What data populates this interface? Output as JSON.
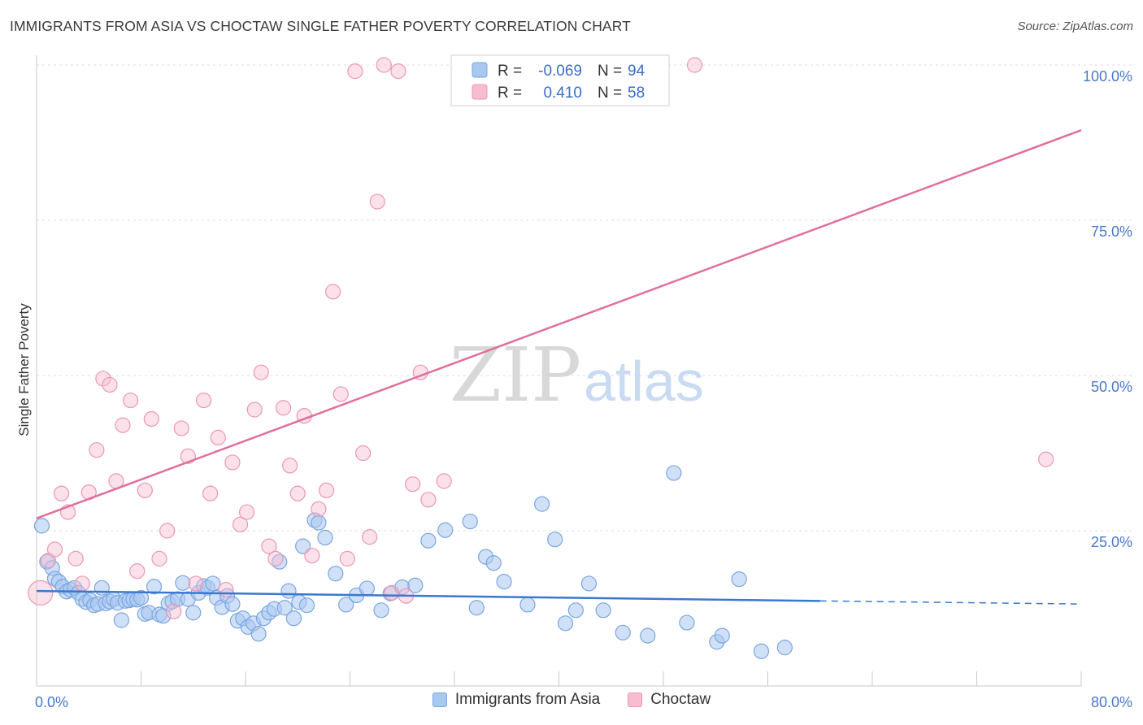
{
  "header": {
    "title": "IMMIGRANTS FROM ASIA VS CHOCTAW SINGLE FATHER POVERTY CORRELATION CHART",
    "source": "Source: ZipAtlas.com"
  },
  "watermark": {
    "zip": "ZIP",
    "atlas": "atlas"
  },
  "colors": {
    "blue_fill": "#a9c8f0",
    "blue_stroke": "#7aa6e0",
    "blue_line": "#3a78d0",
    "pink_fill": "#f6bcd0",
    "pink_stroke": "#eb97b5",
    "pink_line": "#e0709a",
    "value_text": "#3a6fc8"
  },
  "legend_top": {
    "rows": [
      {
        "r_label": "R =",
        "r_value": "-0.069",
        "n_label": "N =",
        "n_value": "94"
      },
      {
        "r_label": "R =",
        "r_value": "0.410",
        "n_label": "N =",
        "n_value": "58"
      }
    ]
  },
  "legend_bottom": [
    {
      "label": "Immigrants from Asia"
    },
    {
      "label": "Choctaw"
    }
  ],
  "chart_data": {
    "type": "scatter",
    "xlabel": "",
    "ylabel": "Single Father Poverty",
    "xlim": [
      0,
      80
    ],
    "ylim": [
      0,
      100
    ],
    "x_tick_labels": [
      "0.0%",
      "80.0%"
    ],
    "y_tick_labels": [
      "25.0%",
      "50.0%",
      "75.0%",
      "100.0%"
    ],
    "y_ticks": [
      25,
      50,
      75,
      100
    ],
    "grid": true,
    "legend": "top-center",
    "series": [
      {
        "name": "Immigrants from Asia",
        "color": "#a9c8f0",
        "trend": {
          "x": [
            0,
            60
          ],
          "y": [
            15.3,
            13.7
          ],
          "dashed_to_x": 80,
          "dashed_to_y": 13.2
        },
        "points": [
          [
            0.4,
            25.8
          ],
          [
            0.8,
            20.0
          ],
          [
            1.2,
            19.0
          ],
          [
            1.4,
            17.3
          ],
          [
            1.7,
            16.8
          ],
          [
            2.0,
            16.0
          ],
          [
            2.3,
            15.2
          ],
          [
            2.6,
            15.5
          ],
          [
            2.9,
            15.8
          ],
          [
            3.2,
            15.0
          ],
          [
            3.5,
            14.0
          ],
          [
            3.8,
            13.5
          ],
          [
            4.1,
            13.8
          ],
          [
            4.4,
            13.0
          ],
          [
            4.7,
            13.2
          ],
          [
            5.0,
            15.8
          ],
          [
            5.3,
            13.3
          ],
          [
            5.6,
            13.6
          ],
          [
            5.9,
            14.0
          ],
          [
            6.2,
            13.4
          ],
          [
            6.5,
            10.6
          ],
          [
            6.8,
            13.7
          ],
          [
            7.1,
            13.8
          ],
          [
            7.4,
            14.0
          ],
          [
            7.7,
            13.9
          ],
          [
            8.0,
            14.2
          ],
          [
            8.3,
            11.6
          ],
          [
            8.6,
            11.8
          ],
          [
            9.0,
            16.0
          ],
          [
            9.4,
            11.5
          ],
          [
            9.7,
            11.3
          ],
          [
            10.1,
            13.3
          ],
          [
            10.4,
            13.6
          ],
          [
            10.8,
            14.0
          ],
          [
            11.2,
            16.6
          ],
          [
            11.6,
            14.0
          ],
          [
            12.0,
            11.8
          ],
          [
            12.4,
            15.0
          ],
          [
            12.8,
            16.1
          ],
          [
            13.1,
            15.8
          ],
          [
            13.5,
            16.5
          ],
          [
            13.8,
            14.2
          ],
          [
            14.2,
            12.7
          ],
          [
            14.6,
            14.5
          ],
          [
            15.0,
            13.2
          ],
          [
            15.4,
            10.5
          ],
          [
            15.8,
            10.9
          ],
          [
            16.2,
            9.5
          ],
          [
            16.6,
            10.1
          ],
          [
            17.0,
            8.4
          ],
          [
            17.4,
            10.9
          ],
          [
            17.8,
            11.8
          ],
          [
            18.2,
            12.4
          ],
          [
            18.6,
            20.0
          ],
          [
            19.0,
            12.6
          ],
          [
            19.3,
            15.3
          ],
          [
            19.7,
            10.9
          ],
          [
            20.1,
            13.5
          ],
          [
            20.4,
            22.5
          ],
          [
            20.7,
            13.0
          ],
          [
            21.3,
            26.7
          ],
          [
            21.6,
            26.3
          ],
          [
            22.1,
            23.9
          ],
          [
            22.9,
            18.1
          ],
          [
            23.7,
            13.1
          ],
          [
            24.5,
            14.6
          ],
          [
            25.3,
            15.7
          ],
          [
            26.4,
            12.2
          ],
          [
            27.1,
            14.9
          ],
          [
            28.0,
            15.9
          ],
          [
            29.0,
            16.2
          ],
          [
            30.0,
            23.4
          ],
          [
            31.3,
            25.1
          ],
          [
            33.2,
            26.5
          ],
          [
            33.7,
            12.6
          ],
          [
            34.4,
            20.8
          ],
          [
            35.0,
            19.8
          ],
          [
            35.8,
            16.8
          ],
          [
            37.6,
            13.1
          ],
          [
            38.7,
            29.3
          ],
          [
            39.7,
            23.6
          ],
          [
            40.5,
            10.1
          ],
          [
            41.3,
            12.2
          ],
          [
            42.3,
            16.5
          ],
          [
            43.4,
            12.2
          ],
          [
            44.9,
            8.6
          ],
          [
            46.8,
            8.1
          ],
          [
            48.8,
            34.3
          ],
          [
            49.8,
            10.2
          ],
          [
            52.1,
            7.1
          ],
          [
            52.5,
            8.1
          ],
          [
            53.8,
            17.2
          ],
          [
            55.5,
            5.6
          ],
          [
            57.3,
            6.2
          ]
        ]
      },
      {
        "name": "Choctaw",
        "color": "#f6bcd0",
        "trend": {
          "x": [
            0,
            80
          ],
          "y": [
            27.0,
            89.5
          ]
        },
        "points": [
          [
            0.3,
            15.0
          ],
          [
            0.9,
            20.2
          ],
          [
            1.4,
            22.0
          ],
          [
            1.9,
            31.0
          ],
          [
            2.4,
            28.0
          ],
          [
            3.0,
            20.5
          ],
          [
            3.5,
            16.5
          ],
          [
            4.0,
            31.2
          ],
          [
            4.6,
            38.0
          ],
          [
            5.1,
            49.5
          ],
          [
            5.6,
            48.5
          ],
          [
            6.1,
            33.0
          ],
          [
            6.6,
            42.0
          ],
          [
            7.2,
            46.0
          ],
          [
            7.7,
            18.5
          ],
          [
            8.3,
            31.5
          ],
          [
            8.8,
            43.0
          ],
          [
            9.4,
            20.5
          ],
          [
            10.0,
            25.0
          ],
          [
            10.5,
            12.0
          ],
          [
            11.1,
            41.5
          ],
          [
            11.6,
            37.0
          ],
          [
            12.2,
            16.5
          ],
          [
            12.8,
            46.0
          ],
          [
            13.3,
            31.0
          ],
          [
            13.9,
            40.0
          ],
          [
            14.5,
            15.5
          ],
          [
            15.0,
            36.0
          ],
          [
            15.6,
            26.0
          ],
          [
            16.1,
            28.0
          ],
          [
            16.7,
            44.5
          ],
          [
            17.2,
            50.5
          ],
          [
            17.8,
            22.5
          ],
          [
            18.3,
            20.5
          ],
          [
            18.9,
            44.8
          ],
          [
            19.4,
            35.5
          ],
          [
            20.0,
            31.0
          ],
          [
            20.5,
            43.5
          ],
          [
            21.1,
            21.0
          ],
          [
            21.6,
            28.5
          ],
          [
            22.2,
            31.5
          ],
          [
            22.7,
            63.5
          ],
          [
            23.3,
            47.0
          ],
          [
            23.8,
            20.5
          ],
          [
            24.4,
            99.0
          ],
          [
            25.0,
            37.5
          ],
          [
            25.5,
            24.0
          ],
          [
            26.1,
            78.0
          ],
          [
            26.6,
            100.0
          ],
          [
            27.2,
            15.0
          ],
          [
            27.7,
            99.0
          ],
          [
            28.3,
            14.5
          ],
          [
            28.8,
            32.5
          ],
          [
            29.4,
            50.5
          ],
          [
            30.0,
            30.0
          ],
          [
            31.2,
            33.0
          ],
          [
            50.4,
            100.0
          ],
          [
            77.3,
            36.5
          ]
        ]
      }
    ]
  }
}
